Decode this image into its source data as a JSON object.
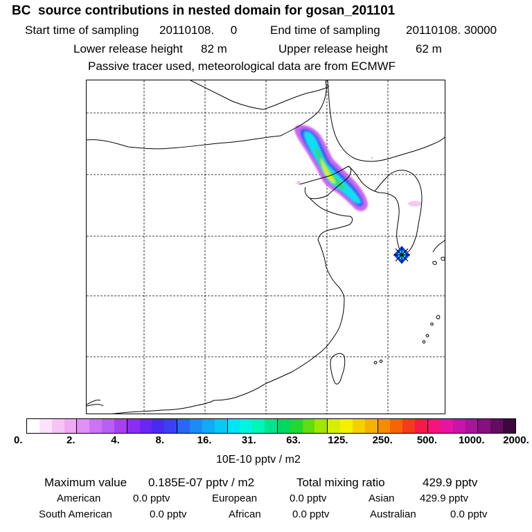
{
  "header": {
    "title": "BC  source contributions in nested domain for gosan_201101",
    "start_label": "Start time of sampling",
    "start_value": "20110108.     0",
    "end_label": "End time of sampling",
    "end_value": "20110108. 30000",
    "lower_label": "Lower release height",
    "lower_value": "82 m",
    "upper_label": "Upper release height",
    "upper_value": "62 m",
    "info": "Passive tracer used, meteorological data are from ECMWF"
  },
  "colorbar": {
    "colors": [
      "#ffffff",
      "#fbe3fb",
      "#f5c5f5",
      "#eeaaf2",
      "#e190f5",
      "#cc72f5",
      "#b85ff5",
      "#a840f0",
      "#8a2ef5",
      "#6a26f5",
      "#4a2af0",
      "#3a40f5",
      "#2a66f5",
      "#1a8cf5",
      "#10aaf5",
      "#08c8f5",
      "#00e6f5",
      "#00f5e0",
      "#00f5b8",
      "#00e68c",
      "#00d860",
      "#20d830",
      "#60dc10",
      "#a0e600",
      "#d6ee00",
      "#f5f000",
      "#f5d000",
      "#f5b000",
      "#f58c00",
      "#f56400",
      "#f53c1a",
      "#f51a46",
      "#f5147a",
      "#e614a0",
      "#c814a8",
      "#a8149a",
      "#86107e",
      "#640c60",
      "#3c083c"
    ],
    "ticks": [
      "0.",
      "2.",
      "4.",
      "8.",
      "16.",
      "31.",
      "63.",
      "125.",
      "250.",
      "500.",
      "1000.",
      "2000."
    ],
    "units": "10E-10 pptv / m2"
  },
  "stats": {
    "max_label": "Maximum value",
    "max_value": "0.185E-07 pptv / m2",
    "total_label": "Total mixing ratio",
    "total_value": "429.9 pptv",
    "regions": [
      {
        "name": "American",
        "value": "0.0 pptv"
      },
      {
        "name": "European",
        "value": "0.0 pptv"
      },
      {
        "name": "Asian",
        "value": "429.9 pptv"
      },
      {
        "name": "South American",
        "value": "0.0 pptv"
      },
      {
        "name": "African",
        "value": "0.0 pptv"
      },
      {
        "name": "Australian",
        "value": "0.0 pptv"
      }
    ]
  },
  "map": {
    "coast_color": "#000000",
    "grid_color": "#000000",
    "receptor_color": "#0a3cf5"
  }
}
